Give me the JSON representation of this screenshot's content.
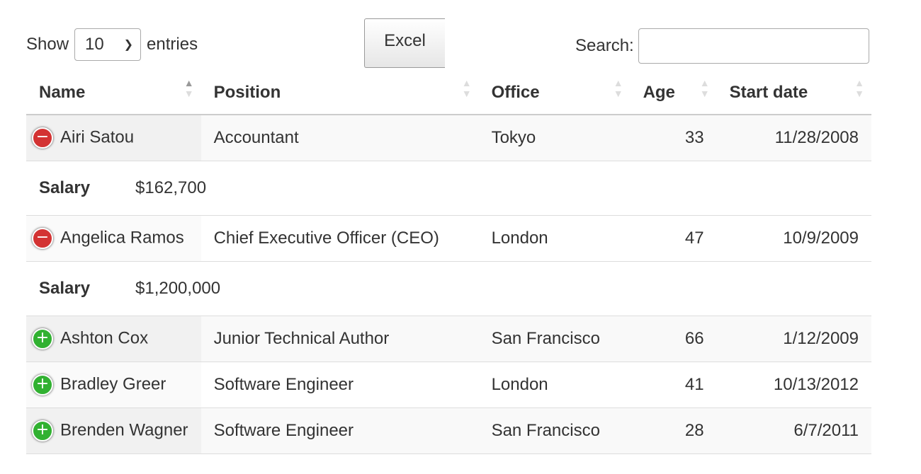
{
  "length": {
    "show_label": "Show",
    "value": "10",
    "entries_label": "entries"
  },
  "excel_label": "Excel",
  "search": {
    "label": "Search:",
    "value": ""
  },
  "columns": [
    "Name",
    "Position",
    "Office",
    "Age",
    "Start date"
  ],
  "sort": {
    "column": "Name",
    "direction": "asc"
  },
  "colors": {
    "expanded": "#d33333",
    "collapsed": "#31b131"
  },
  "detail_label": "Salary",
  "rows": [
    {
      "name": "Airi Satou",
      "position": "Accountant",
      "office": "Tokyo",
      "age": "33",
      "start": "11/28/2008",
      "expanded": true,
      "salary": "$162,700"
    },
    {
      "name": "Angelica Ramos",
      "position": "Chief Executive Officer (CEO)",
      "office": "London",
      "age": "47",
      "start": "10/9/2009",
      "expanded": true,
      "salary": "$1,200,000"
    },
    {
      "name": "Ashton Cox",
      "position": "Junior Technical Author",
      "office": "San Francisco",
      "age": "66",
      "start": "1/12/2009",
      "expanded": false
    },
    {
      "name": "Bradley Greer",
      "position": "Software Engineer",
      "office": "London",
      "age": "41",
      "start": "10/13/2012",
      "expanded": false
    },
    {
      "name": "Brenden Wagner",
      "position": "Software Engineer",
      "office": "San Francisco",
      "age": "28",
      "start": "6/7/2011",
      "expanded": false
    }
  ]
}
